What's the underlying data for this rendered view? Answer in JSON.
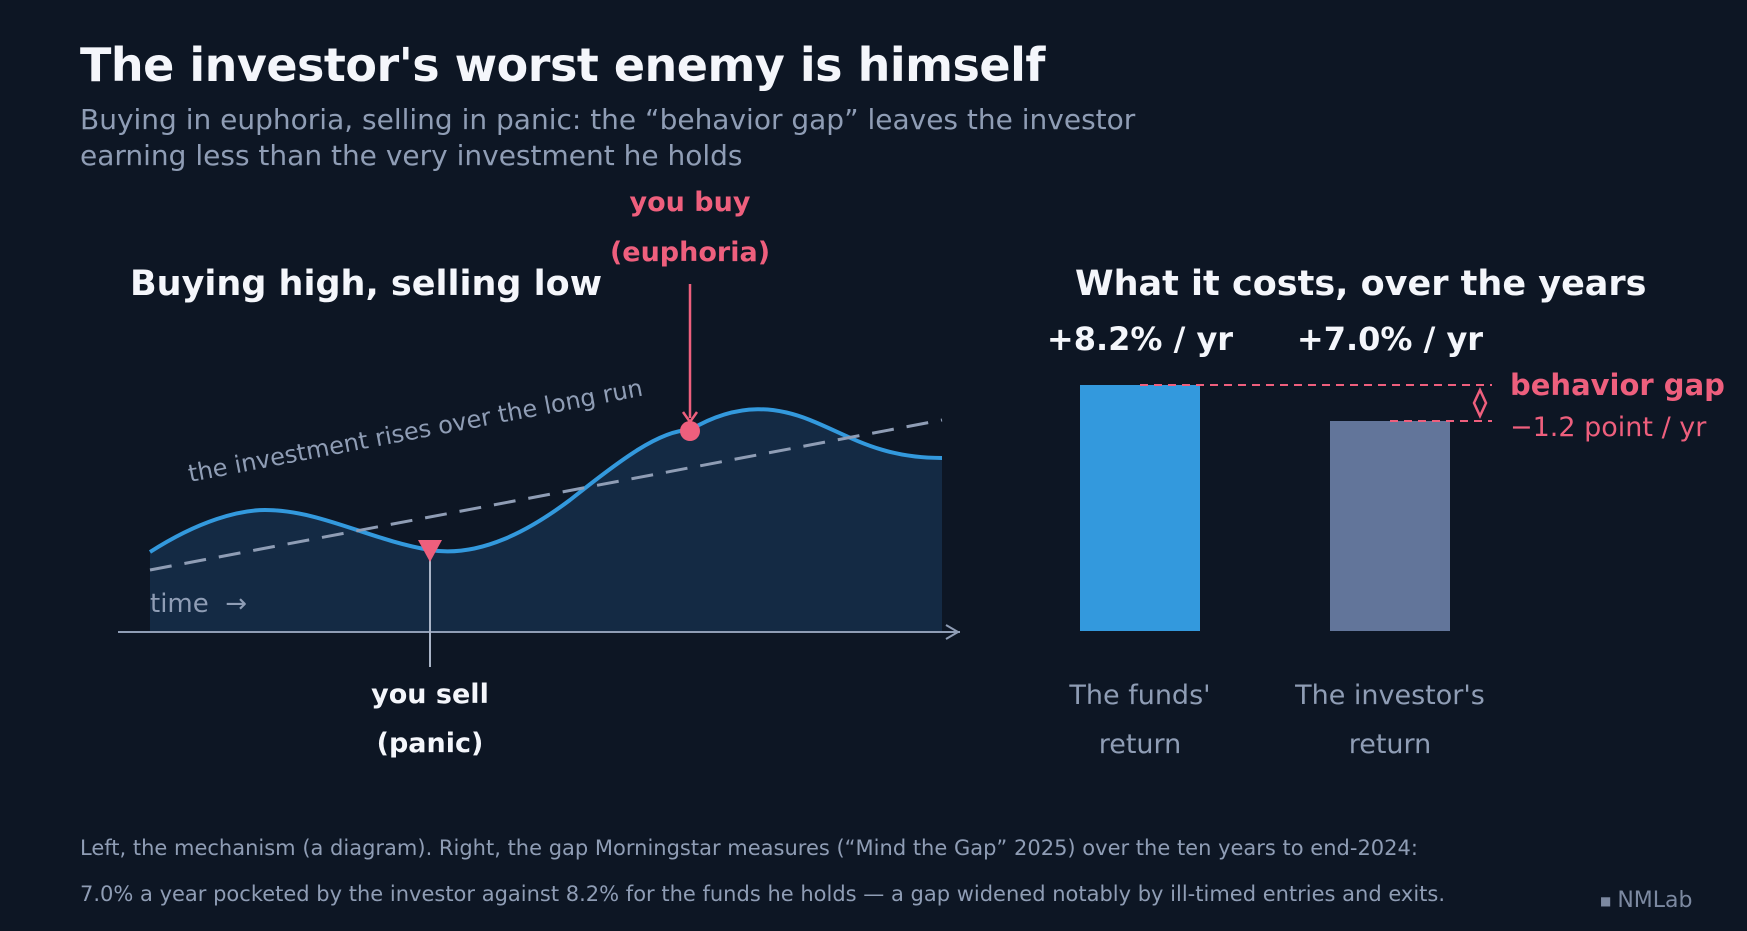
{
  "title": "The investor's worst enemy is himself",
  "subtitle": "Buying in euphoria, selling in panic: the “behavior gap” leaves the investor earning less than the very investment he holds",
  "diagram": {
    "heading": "Buying high, selling low",
    "trend_label": "the investment rises over the long run",
    "time_label": "time  →",
    "buy_label": [
      "you buy",
      "(euphoria)"
    ],
    "sell_label": [
      "you sell",
      "(panic)"
    ]
  },
  "chart_data": {
    "type": "bar",
    "title": "What it costs, over the years",
    "categories": [
      "The funds' return",
      "The investor's return"
    ],
    "category_lines": [
      [
        "The funds'",
        "return"
      ],
      [
        "The investor's",
        "return"
      ]
    ],
    "values": [
      8.2,
      7.0
    ],
    "value_labels": [
      "+8.2% / yr",
      "+7.0% / yr"
    ],
    "colors": [
      "#3399dd",
      "#62759a"
    ],
    "gap_label": "behavior gap",
    "gap_value_label": "−1.2 point / yr",
    "accent_color": "#ee5f7d"
  },
  "footer": [
    "Left, the mechanism (a diagram). Right, the gap Morningstar measures (“Mind the Gap” 2025) over the ten years to end-2024:",
    "7.0% a year pocketed by the investor against 8.2% for the funds he holds — a gap widened notably by ill-timed entries and exits."
  ],
  "brand": "NMLab"
}
